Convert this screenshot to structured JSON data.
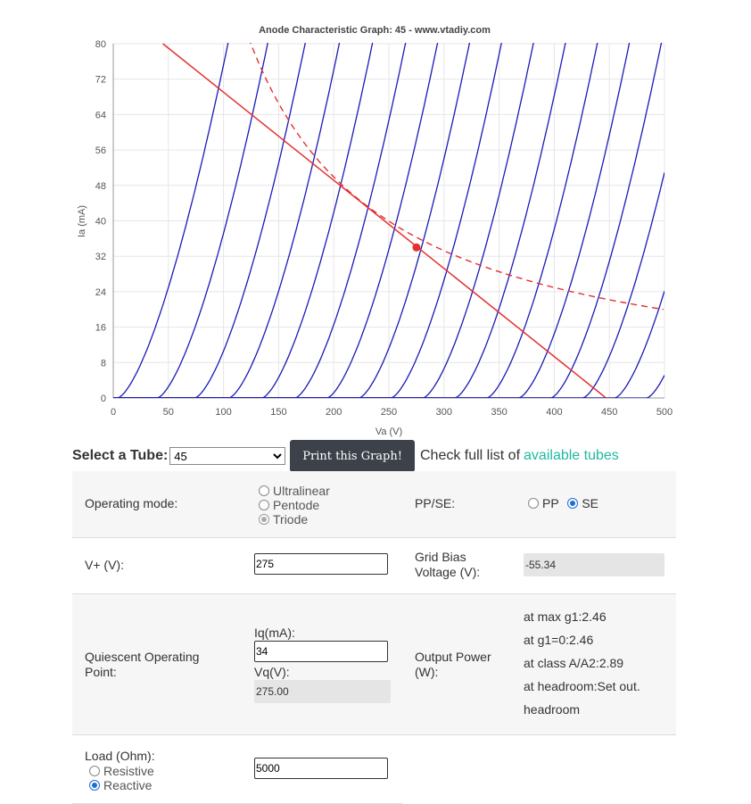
{
  "chart_data": {
    "type": "line",
    "title": "Anode Characteristic Graph: 45 - www.vtadiy.com",
    "xlabel": "Va (V)",
    "ylabel": "Ia (mA)",
    "xlim": [
      0,
      500
    ],
    "ylim": [
      0,
      80
    ],
    "x_ticks": [
      0,
      50,
      100,
      150,
      200,
      250,
      300,
      350,
      400,
      450,
      500
    ],
    "y_ticks": [
      0,
      8,
      16,
      24,
      32,
      40,
      48,
      56,
      64,
      72,
      80
    ],
    "grid": true,
    "curve_color": "#1a1ab8",
    "load_color": "#e53030",
    "anode_curves_start_voltage": [
      4,
      40,
      74,
      105,
      135,
      165,
      194,
      223,
      252,
      281,
      310,
      339,
      368,
      397,
      426,
      455,
      484
    ],
    "load_line": {
      "points": [
        [
          45,
          80
        ],
        [
          447,
          0
        ]
      ]
    },
    "power_curve": {
      "type": "dashed",
      "power_watts": 9.98
    },
    "operating_point": {
      "x": 275,
      "y": 34
    }
  },
  "controls": {
    "select_label": "Select a Tube:",
    "tube_selected": "45",
    "print_button": "Print this Graph!",
    "check_text": "Check full list of",
    "tubes_link": "available tubes"
  },
  "rows": {
    "mode": {
      "label": "Operating mode:",
      "options": [
        "Ultralinear",
        "Pentode",
        "Triode"
      ],
      "pp_se_label": "PP/SE:",
      "pp": "PP",
      "se": "SE"
    },
    "vplus": {
      "label": "V+ (V):",
      "value": "275",
      "grid_label": "Grid Bias Voltage (V):",
      "grid_value": "-55.34"
    },
    "quiescent": {
      "label": "Quiescent Operating Point:",
      "iq_label": "Iq(mA):",
      "iq_value": "34",
      "vq_label": "Vq(V):",
      "vq_value": "275.00",
      "power_label": "Output Power (W):",
      "power_lines": [
        "at max g1:2.46",
        "at g1=0:2.46",
        "at class A/A2:2.89",
        "at headroom:Set out.",
        "headroom"
      ]
    },
    "load": {
      "label": "Load (Ohm):",
      "resistive": "Resistive",
      "reactive": "Reactive",
      "value": "5000"
    }
  }
}
